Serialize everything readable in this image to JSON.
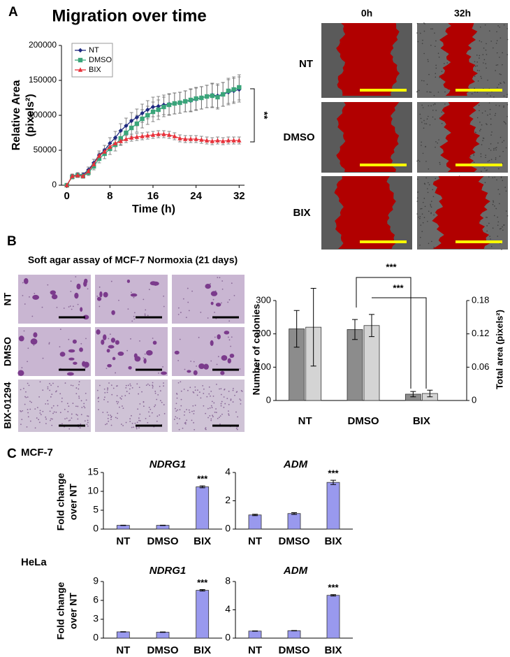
{
  "panel_labels": [
    "A",
    "B",
    "C"
  ],
  "cell_lines": [
    "MCF-7",
    "HeLa"
  ],
  "wound_healing": {
    "columns": [
      "0h",
      "32h"
    ],
    "rows": [
      "NT",
      "DMSO",
      "BIX"
    ]
  },
  "soft_agar": {
    "title": "Soft agar assay of MCF-7 Normoxia (21 days)",
    "rows": [
      "NT",
      "DMSO",
      "BIX-01294"
    ]
  },
  "chart_data": [
    {
      "type": "line",
      "title": "Migration over time",
      "xlabel": "Time (h)",
      "ylabel": [
        "Relative Area",
        "(pixels²)"
      ],
      "x": [
        0,
        1,
        2,
        3,
        4,
        5,
        6,
        7,
        8,
        9,
        10,
        11,
        12,
        13,
        14,
        15,
        16,
        17,
        18,
        19,
        20,
        21,
        22,
        23,
        24,
        25,
        26,
        27,
        28,
        29,
        30,
        31,
        32
      ],
      "xlim": [
        -1,
        33
      ],
      "xticks": [
        0,
        8,
        16,
        24,
        32
      ],
      "ylim": [
        0,
        200000
      ],
      "yticks": [
        0,
        50000,
        100000,
        150000,
        200000
      ],
      "legend": "upper left",
      "series": [
        {
          "name": "NT",
          "color": "#1f2a80",
          "marker": "diamond",
          "values": [
            0,
            13000,
            15000,
            15000,
            22000,
            32000,
            43000,
            50000,
            60000,
            68000,
            78000,
            85000,
            92000,
            97000,
            103000,
            108000,
            112000,
            113000,
            115000,
            116000,
            117000,
            118000,
            120000,
            121000,
            123000,
            125000,
            127000,
            129000,
            128000,
            130000,
            133000,
            135000,
            137000
          ],
          "errors": [
            0,
            3000,
            3000,
            3000,
            4000,
            5000,
            6000,
            7000,
            8000,
            9000,
            10000,
            11000,
            12000,
            12000,
            13000,
            13000,
            14000,
            14000,
            14000,
            15000,
            15000,
            15000,
            15000,
            16000,
            16000,
            16000,
            16000,
            17000,
            17000,
            17000,
            18000,
            18000,
            18000
          ]
        },
        {
          "name": "DMSO",
          "color": "#3aa57a",
          "marker": "square",
          "values": [
            0,
            12000,
            14000,
            13000,
            18000,
            27000,
            38000,
            45000,
            52000,
            58000,
            67000,
            75000,
            82000,
            88000,
            95000,
            100000,
            105000,
            108000,
            112000,
            115000,
            117000,
            118000,
            120000,
            122000,
            124000,
            125000,
            127000,
            128000,
            126000,
            130000,
            135000,
            137000,
            140000
          ],
          "errors": [
            0,
            3000,
            3000,
            3000,
            4000,
            5000,
            6000,
            7000,
            8000,
            9000,
            10000,
            11000,
            12000,
            12000,
            13000,
            13000,
            14000,
            14000,
            14000,
            15000,
            15000,
            15000,
            15000,
            16000,
            16000,
            16000,
            16000,
            17000,
            17000,
            17000,
            18000,
            18000,
            18000
          ]
        },
        {
          "name": "BIX",
          "color": "#e8313a",
          "marker": "triangle",
          "values": [
            0,
            13000,
            14000,
            13000,
            20000,
            30000,
            42000,
            48000,
            55000,
            60000,
            63000,
            66000,
            68000,
            69000,
            70000,
            71000,
            72000,
            73000,
            73000,
            72000,
            70000,
            67000,
            66000,
            66000,
            66000,
            65000,
            64000,
            63000,
            64000,
            63000,
            64000,
            64000,
            64000
          ],
          "errors": [
            0,
            2000,
            2000,
            2000,
            3000,
            3000,
            4000,
            4000,
            5000,
            5000,
            5000,
            5000,
            5000,
            5000,
            5000,
            5000,
            5000,
            5000,
            5000,
            5000,
            5000,
            5000,
            5000,
            5000,
            5000,
            5000,
            5000,
            5000,
            5000,
            5000,
            5000,
            5000,
            5000
          ]
        }
      ],
      "annotations": [
        "**"
      ]
    },
    {
      "type": "bar",
      "categories": [
        "NT",
        "DMSO",
        "BIX"
      ],
      "ylabel": "Number of colonies",
      "y2label": "Total area (pixels²)",
      "ylim": [
        0,
        300
      ],
      "yticks": [
        0,
        100,
        200,
        300
      ],
      "y2lim": [
        0,
        0.18
      ],
      "y2ticks": [
        0,
        0.06,
        0.12,
        0.18
      ],
      "series": [
        {
          "color": "#8c8c8c",
          "values": [
            215,
            213,
            19
          ],
          "errors": [
            55,
            30,
            8
          ]
        },
        {
          "color": "#d4d4d4",
          "axis": "y2",
          "values": [
            0.132,
            0.135,
            0.0126
          ],
          "errors": [
            0.07,
            0.02,
            0.006
          ]
        }
      ],
      "annotations": [
        "***",
        "***"
      ]
    },
    {
      "type": "bar",
      "title": "NDRG1",
      "ylabel": [
        "Fold change",
        "over NT"
      ],
      "categories": [
        "NT",
        "DMSO",
        "BIX"
      ],
      "ylim": [
        0,
        15
      ],
      "yticks": [
        0,
        5,
        10,
        15
      ],
      "series": [
        {
          "color": "#9999ee",
          "values": [
            1,
            1,
            11.2
          ],
          "errors": [
            0.05,
            0.05,
            0.25
          ]
        }
      ],
      "annotations": [
        "***"
      ]
    },
    {
      "type": "bar",
      "title": "ADM",
      "categories": [
        "NT",
        "DMSO",
        "BIX"
      ],
      "ylim": [
        0,
        4
      ],
      "yticks": [
        0,
        2,
        4
      ],
      "series": [
        {
          "color": "#9999ee",
          "values": [
            1,
            1.1,
            3.3
          ],
          "errors": [
            0.05,
            0.06,
            0.15
          ]
        }
      ],
      "annotations": [
        "***"
      ]
    },
    {
      "type": "bar",
      "title": "NDRG1",
      "ylabel": [
        "Fold change",
        "over NT"
      ],
      "categories": [
        "NT",
        "DMSO",
        "BIX"
      ],
      "ylim": [
        0,
        9
      ],
      "yticks": [
        0,
        3,
        6,
        9
      ],
      "series": [
        {
          "color": "#9999ee",
          "values": [
            1,
            0.95,
            7.6
          ],
          "errors": [
            0.03,
            0.03,
            0.12
          ]
        }
      ],
      "annotations": [
        "***"
      ]
    },
    {
      "type": "bar",
      "title": "ADM",
      "categories": [
        "NT",
        "DMSO",
        "BIX"
      ],
      "ylim": [
        0,
        8
      ],
      "yticks": [
        0,
        4,
        8
      ],
      "series": [
        {
          "color": "#9999ee",
          "values": [
            1,
            1.05,
            6.05
          ],
          "errors": [
            0.03,
            0.03,
            0.1
          ]
        }
      ],
      "annotations": [
        "***"
      ]
    }
  ]
}
